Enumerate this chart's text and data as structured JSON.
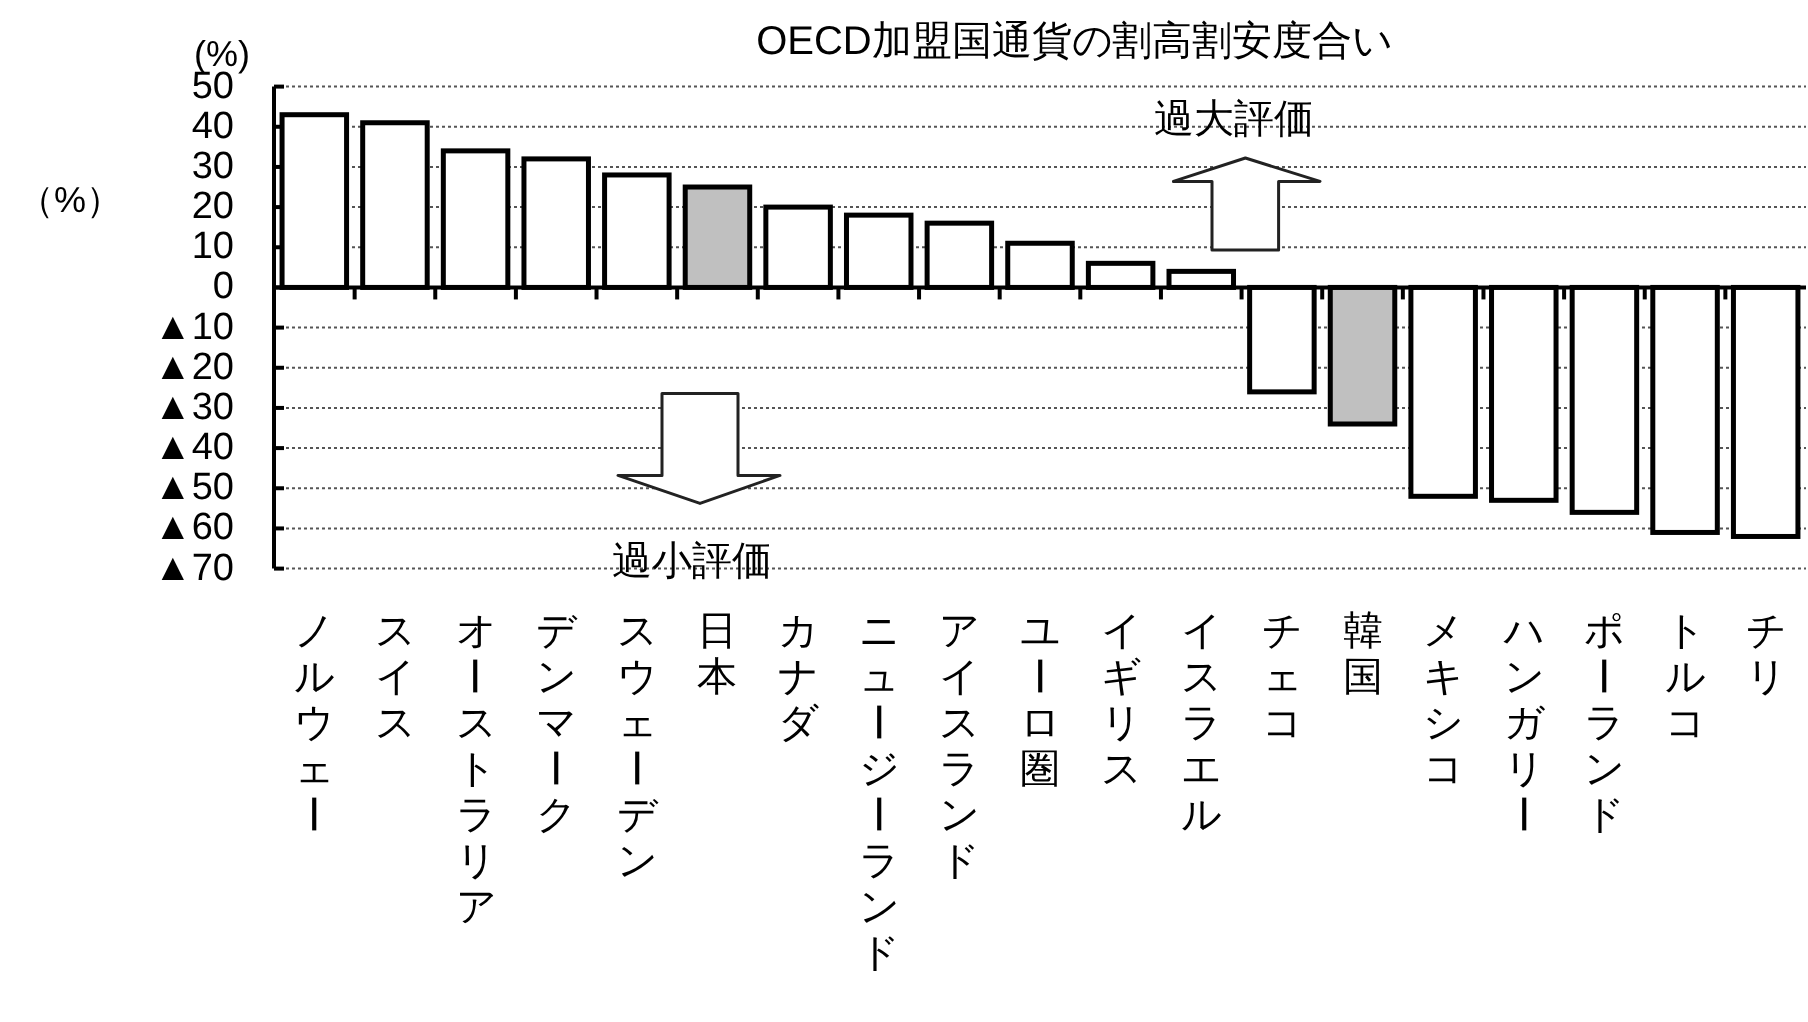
{
  "chart_data": {
    "type": "bar",
    "title": "OECD加盟国通貨の割高割安度合い",
    "ylabel": "（%）",
    "annotations": [
      "(%)",
      "過大評価",
      "過小評価"
    ],
    "categories": [
      "ノルウェー",
      "スイス",
      "オーストラリア",
      "デンマーク",
      "スウェーデン",
      "日本",
      "カナダ",
      "ニュージーランド",
      "アイスランド",
      "ユーロ圏",
      "イギリス",
      "イスラエル",
      "チェコ",
      "韓国",
      "メキシコ",
      "ハンガリー",
      "ポーランド",
      "トルコ",
      "チリ"
    ],
    "values": [
      43,
      41,
      34,
      32,
      28,
      25,
      20,
      18,
      16,
      11,
      6,
      4,
      -26,
      -34,
      -52,
      -53,
      -56,
      -61,
      -62
    ],
    "colors": [
      "#ffffff",
      "#ffffff",
      "#ffffff",
      "#ffffff",
      "#ffffff",
      "#c0c0c0",
      "#ffffff",
      "#ffffff",
      "#ffffff",
      "#ffffff",
      "#ffffff",
      "#ffffff",
      "#ffffff",
      "#c0c0c0",
      "#ffffff",
      "#ffffff",
      "#ffffff",
      "#ffffff",
      "#ffffff"
    ],
    "ylim": [
      -70,
      50
    ],
    "yticks": [
      {
        "value": -70,
        "label": "▲70"
      },
      {
        "value": -60,
        "label": "▲60"
      },
      {
        "value": -50,
        "label": "▲50"
      },
      {
        "value": -40,
        "label": "▲40"
      },
      {
        "value": -30,
        "label": "▲30"
      },
      {
        "value": -20,
        "label": "▲20"
      },
      {
        "value": -10,
        "label": "▲10"
      },
      0,
      10,
      20,
      30,
      40,
      50
    ],
    "grid": "y"
  }
}
